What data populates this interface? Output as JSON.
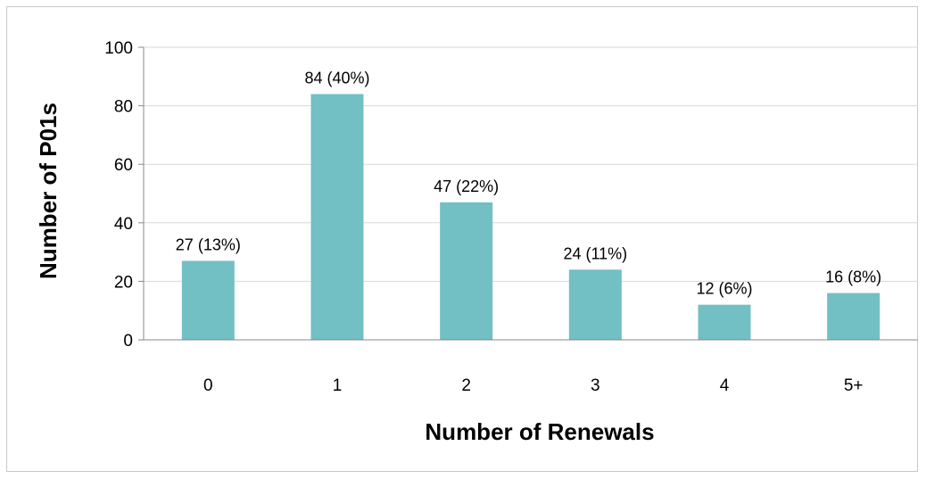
{
  "chart_data": {
    "type": "bar",
    "title": "",
    "xlabel": "Number of Renewals",
    "ylabel": "Number of P01s",
    "categories": [
      "0",
      "1",
      "2",
      "3",
      "4",
      "5+"
    ],
    "values": [
      27,
      84,
      47,
      24,
      12,
      16
    ],
    "data_labels": [
      "27 (13%)",
      "84 (40%)",
      "47 (22%)",
      "24 (11%)",
      "12 (6%)",
      "16 (8%)"
    ],
    "ylim": [
      0,
      100
    ],
    "yticks": [
      0,
      20,
      40,
      60,
      80,
      100
    ],
    "grid": true,
    "legend": "none",
    "bar_color": "#72BFC4",
    "grid_color": "#d9d9d9"
  }
}
